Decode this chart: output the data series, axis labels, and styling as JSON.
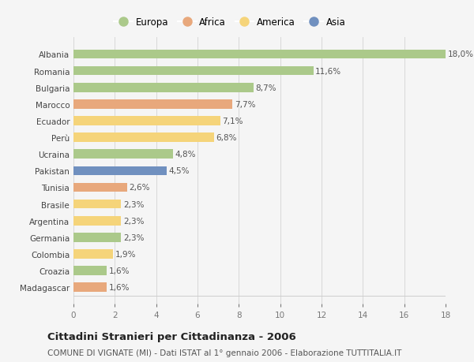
{
  "countries": [
    "Albania",
    "Romania",
    "Bulgaria",
    "Marocco",
    "Ecuador",
    "Perù",
    "Ucraina",
    "Pakistan",
    "Tunisia",
    "Brasile",
    "Argentina",
    "Germania",
    "Colombia",
    "Croazia",
    "Madagascar"
  ],
  "values": [
    18.0,
    11.6,
    8.7,
    7.7,
    7.1,
    6.8,
    4.8,
    4.5,
    2.6,
    2.3,
    2.3,
    2.3,
    1.9,
    1.6,
    1.6
  ],
  "continents": [
    "Europa",
    "Europa",
    "Europa",
    "Africa",
    "America",
    "America",
    "Europa",
    "Asia",
    "Africa",
    "America",
    "America",
    "Europa",
    "America",
    "Europa",
    "Africa"
  ],
  "colors": {
    "Europa": "#abc98a",
    "Africa": "#e8a87c",
    "America": "#f5d47a",
    "Asia": "#7090bf"
  },
  "xlim": [
    0,
    18
  ],
  "xticks": [
    0,
    2,
    4,
    6,
    8,
    10,
    12,
    14,
    16,
    18
  ],
  "title": "Cittadini Stranieri per Cittadinanza - 2006",
  "subtitle": "COMUNE DI VIGNATE (MI) - Dati ISTAT al 1° gennaio 2006 - Elaborazione TUTTITALIA.IT",
  "bg_color": "#f5f5f5",
  "bar_height": 0.55,
  "label_fontsize": 7.5,
  "value_fontsize": 7.5,
  "title_fontsize": 9.5,
  "subtitle_fontsize": 7.5,
  "legend_order": [
    "Europa",
    "Africa",
    "America",
    "Asia"
  ]
}
